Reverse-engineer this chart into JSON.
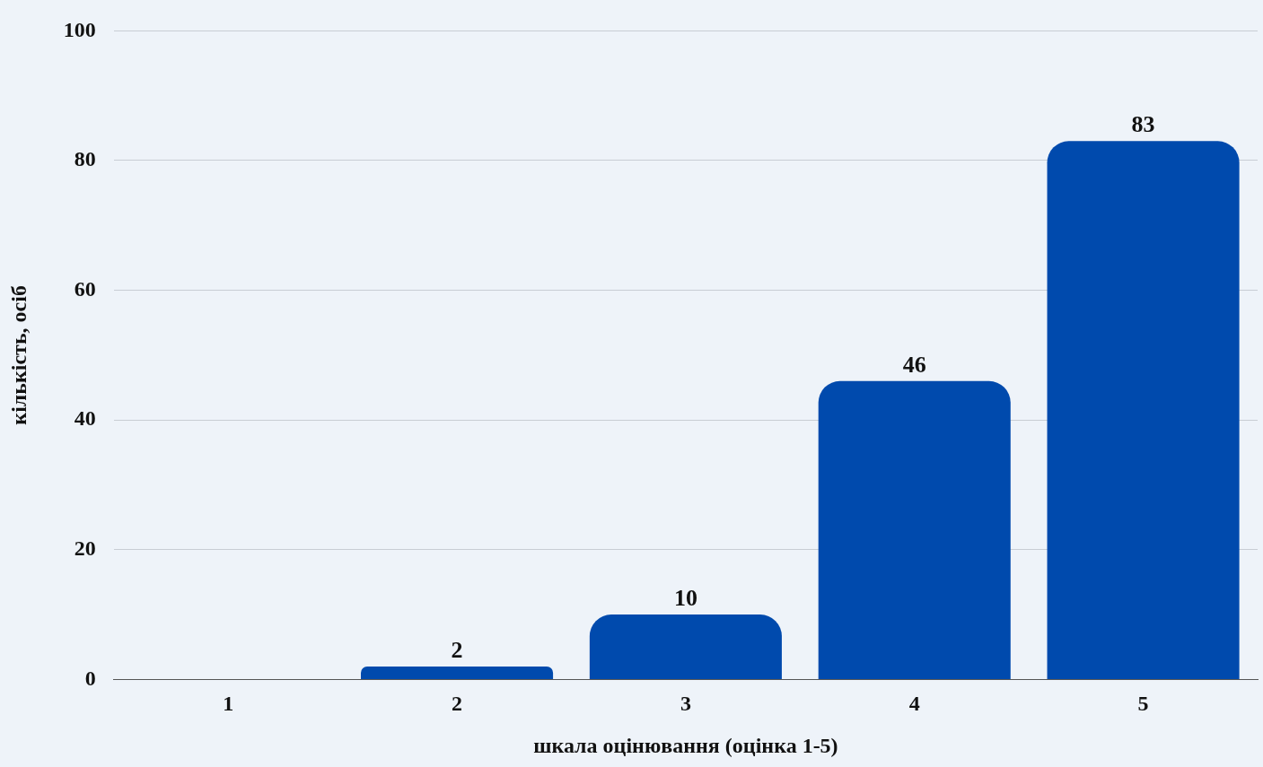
{
  "chart_data": {
    "type": "bar",
    "xlabel": "шкала оцінювання (оцінка 1-5)",
    "ylabel": "кількість, осіб",
    "categories": [
      "1",
      "2",
      "3",
      "4",
      "5"
    ],
    "values": [
      0,
      2,
      10,
      46,
      83
    ],
    "value_labels": [
      null,
      "2",
      "10",
      "46",
      "83"
    ],
    "color": "#004aad",
    "ylim": [
      0,
      100
    ],
    "yticks": [
      0,
      20,
      40,
      60,
      80,
      100
    ],
    "grid": "y",
    "legend": false
  }
}
